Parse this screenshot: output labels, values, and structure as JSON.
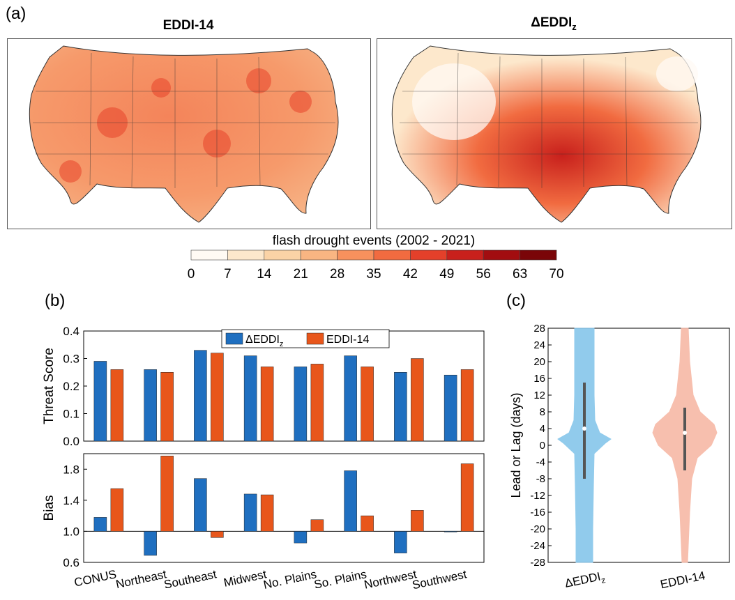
{
  "figure": {
    "panel_a_label": "(a)",
    "panel_b_label": "(b)",
    "panel_c_label": "(c)",
    "colors": {
      "delta": "#1f6fc0",
      "eddi": "#e8561b",
      "delta_violin": "#86c6ea",
      "eddi_violin": "#f7b9a6"
    }
  },
  "maps": {
    "left_title": "EDDI-14",
    "right_title_main": "ΔEDDI",
    "right_title_sub": "z"
  },
  "colorbar": {
    "title": "flash drought events (2002 - 2021)",
    "ticks": [
      "0",
      "7",
      "14",
      "21",
      "28",
      "35",
      "42",
      "49",
      "56",
      "63",
      "70"
    ],
    "colors": [
      "#fffaf4",
      "#fde8cc",
      "#fbd3a6",
      "#f9b582",
      "#f7915d",
      "#f16b40",
      "#e4402a",
      "#c8201c",
      "#a20d10",
      "#7a0508"
    ]
  },
  "chart_data": [
    {
      "type": "bar",
      "ylabel": "Threat Score",
      "ylim": [
        0,
        0.4
      ],
      "yticks": [
        "0.0",
        "0.1",
        "0.2",
        "0.3",
        "0.4"
      ],
      "categories": [
        "CONUS",
        "Northeast",
        "Southeast",
        "Midwest",
        "No. Plains",
        "So. Plains",
        "Northwest",
        "Southwest"
      ],
      "series": [
        {
          "name": "ΔEDDI",
          "name_sub": "z",
          "values": [
            0.29,
            0.26,
            0.33,
            0.31,
            0.27,
            0.31,
            0.25,
            0.24
          ]
        },
        {
          "name": "EDDI-14",
          "values": [
            0.26,
            0.25,
            0.32,
            0.27,
            0.28,
            0.27,
            0.3,
            0.26
          ]
        }
      ],
      "legend": "top-center"
    },
    {
      "type": "bar",
      "ylabel": "Bias",
      "ylim": [
        0.6,
        2.0
      ],
      "yticks": [
        "0.6",
        "1.0",
        "1.4",
        "1.8"
      ],
      "baseline": 1.0,
      "categories": [
        "CONUS",
        "Northeast",
        "Southeast",
        "Midwest",
        "No. Plains",
        "So. Plains",
        "Northwest",
        "Southwest"
      ],
      "series": [
        {
          "name": "ΔEDDI",
          "values": [
            1.18,
            0.69,
            1.68,
            1.48,
            0.85,
            1.78,
            0.72,
            1.0
          ]
        },
        {
          "name": "EDDI-14",
          "values": [
            1.55,
            1.97,
            0.92,
            1.47,
            1.15,
            1.2,
            1.27,
            1.87
          ]
        }
      ]
    },
    {
      "type": "violin",
      "ylabel": "Lead or Lag (days)",
      "ylim": [
        -28,
        28
      ],
      "yticks": [
        "28",
        "24",
        "20",
        "16",
        "12",
        "8",
        "4",
        "0",
        "-4",
        "-8",
        "-12",
        "-16",
        "-20",
        "-24",
        "-28"
      ],
      "categories": [
        "ΔEDDI",
        "EDDI-14"
      ],
      "category_subs": [
        "z",
        ""
      ],
      "series": [
        {
          "name": "ΔEDDI",
          "median": 4,
          "q1": -8,
          "q3": 15
        },
        {
          "name": "EDDI-14",
          "median": 3,
          "q1": -6,
          "q3": 9
        }
      ]
    }
  ]
}
